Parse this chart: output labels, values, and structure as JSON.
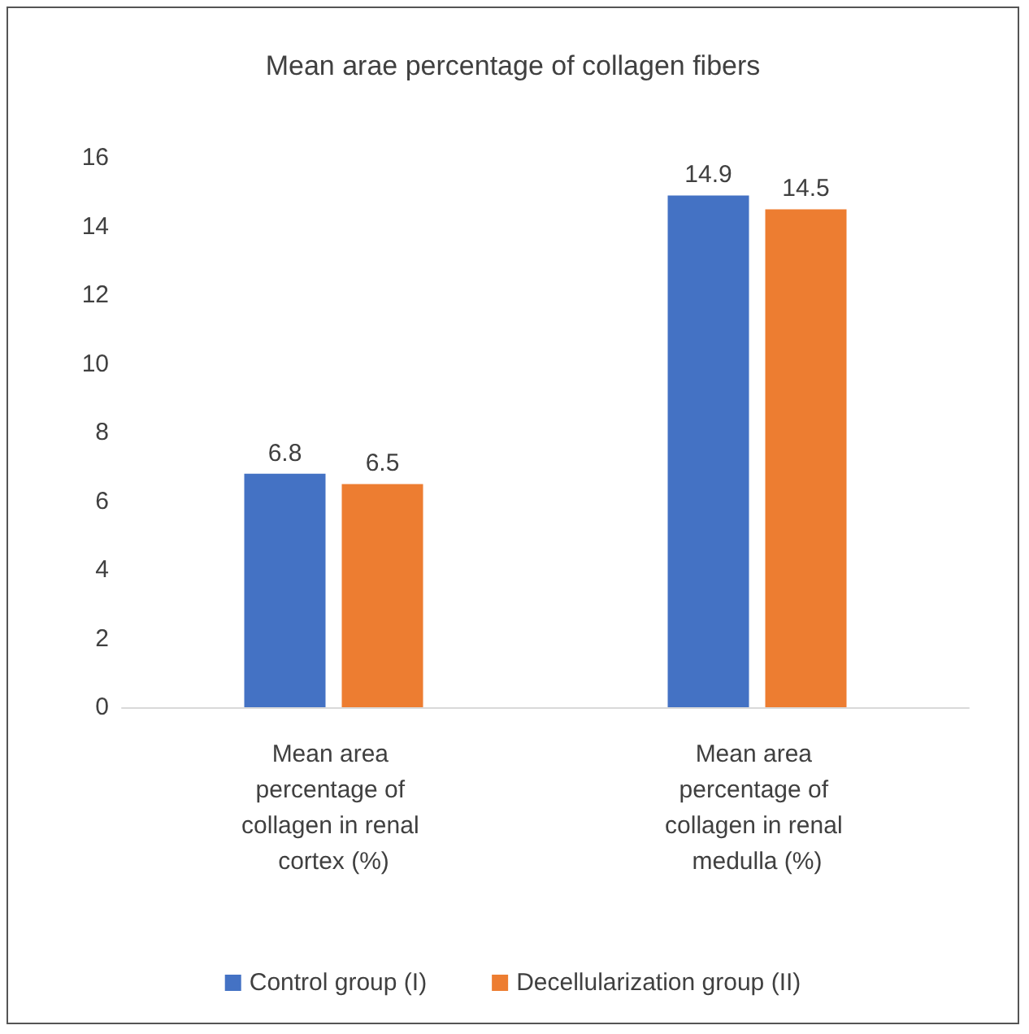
{
  "chart_data": {
    "type": "bar",
    "title": "Mean arae percentage of collagen fibers",
    "categories": [
      "Mean area percentage of collagen in renal cortex (%)",
      "Mean area percentage of collagen in renal medulla (%)"
    ],
    "series": [
      {
        "name": "Control group (I)",
        "color": "#4472c4",
        "values": [
          6.8,
          14.9
        ]
      },
      {
        "name": "Decellularization group (II)",
        "color": "#ed7d31",
        "values": [
          6.5,
          14.5
        ]
      }
    ],
    "ylim": [
      0,
      16
    ],
    "yticks": [
      0,
      2,
      4,
      6,
      8,
      10,
      12,
      14,
      16
    ],
    "grid": false,
    "legend": "bottom",
    "data_labels": true
  }
}
